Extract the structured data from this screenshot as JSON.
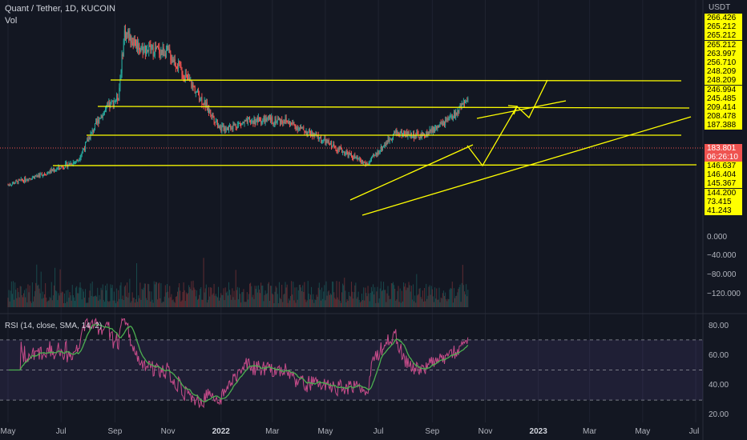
{
  "header": {
    "symbol_line": "Quant / Tether, 1D, KUCOIN",
    "vol_label": "Vol",
    "rsi_label": "RSI (14, close, SMA, 14, 2)"
  },
  "price_axis": {
    "currency": "USDT",
    "yellow_labels": [
      "266.426",
      "265.212",
      "265.212",
      "265.212",
      "263.997",
      "256.710",
      "248.209",
      "248.209",
      "246.994",
      "245.485",
      "209.414",
      "208.478",
      "187.388"
    ],
    "current_price": "183.801",
    "countdown": "06:26:10",
    "yellow_labels_lower": [
      "146.637",
      "146.404",
      "145.367",
      "144.200",
      "73.415",
      "41.243"
    ]
  },
  "volume_axis": [
    "0.000",
    "−40.000",
    "−80.000",
    "−120.000"
  ],
  "rsi_axis": [
    "80.00",
    "60.00",
    "40.00",
    "20.00"
  ],
  "time_axis": [
    {
      "label": "May",
      "bold": false
    },
    {
      "label": "Jul",
      "bold": false
    },
    {
      "label": "Sep",
      "bold": false
    },
    {
      "label": "Nov",
      "bold": false
    },
    {
      "label": "2022",
      "bold": true
    },
    {
      "label": "Mar",
      "bold": false
    },
    {
      "label": "May",
      "bold": false
    },
    {
      "label": "Jul",
      "bold": false
    },
    {
      "label": "Sep",
      "bold": false
    },
    {
      "label": "Nov",
      "bold": false
    },
    {
      "label": "2023",
      "bold": true
    },
    {
      "label": "Mar",
      "bold": false
    },
    {
      "label": "May",
      "bold": false
    },
    {
      "label": "Jul",
      "bold": false
    }
  ],
  "colors": {
    "background": "#131722",
    "up": "#26a69a",
    "down": "#ef5350",
    "drawing": "#ffff00",
    "rsi_line": "#c74c8a",
    "rsi_ma": "#4caf50",
    "rsi_band": "#7e57c2"
  },
  "chart_data": {
    "type": "candlestick",
    "x_start": "2021-05-01",
    "x_end": "2023-07-01",
    "close_series": [
      {
        "date": "2021-05-01",
        "close": 80
      },
      {
        "date": "2021-06-15",
        "close": 95
      },
      {
        "date": "2021-07-20",
        "close": 110
      },
      {
        "date": "2021-08-15",
        "close": 165
      },
      {
        "date": "2021-09-05",
        "close": 190
      },
      {
        "date": "2021-09-12",
        "close": 270
      },
      {
        "date": "2021-10-01",
        "close": 250
      },
      {
        "date": "2021-11-01",
        "close": 245
      },
      {
        "date": "2021-12-01",
        "close": 200
      },
      {
        "date": "2022-01-01",
        "close": 150
      },
      {
        "date": "2022-02-10",
        "close": 160
      },
      {
        "date": "2022-03-15",
        "close": 160
      },
      {
        "date": "2022-04-20",
        "close": 140
      },
      {
        "date": "2022-06-18",
        "close": 105
      },
      {
        "date": "2022-07-20",
        "close": 145
      },
      {
        "date": "2022-08-20",
        "close": 140
      },
      {
        "date": "2022-09-20",
        "close": 160
      },
      {
        "date": "2022-10-12",
        "close": 183.801
      }
    ],
    "rsi": {
      "period": 14,
      "ma_period": 14,
      "levels": [
        70,
        50,
        30
      ],
      "last": 80
    }
  }
}
